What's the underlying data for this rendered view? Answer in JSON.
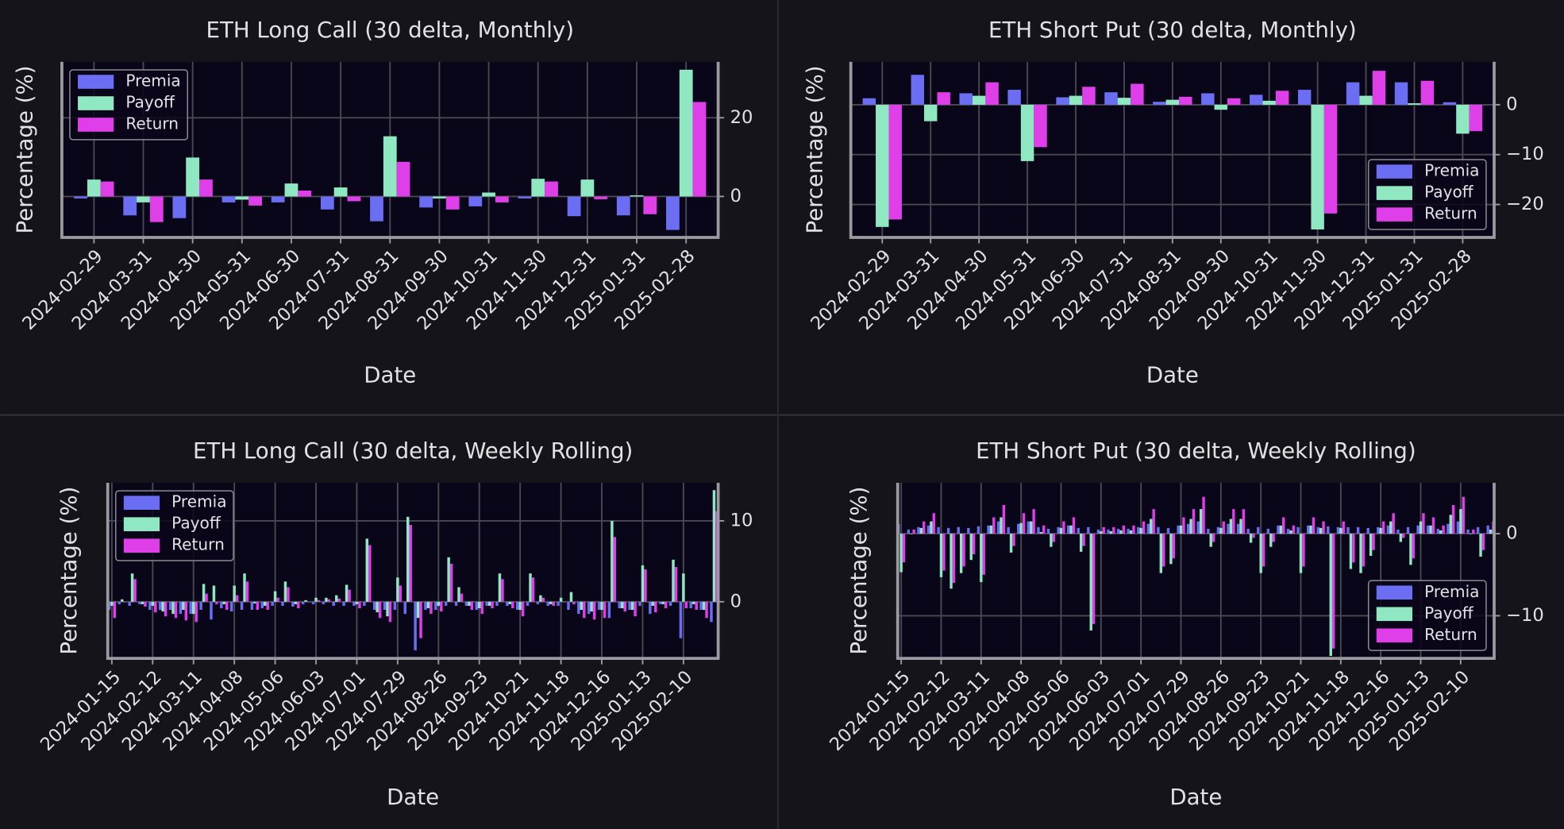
{
  "chart_data": [
    {
      "type": "bar",
      "title": "ETH Long Call (30 delta, Monthly)",
      "x_label": "Date",
      "y_label": "Percentage (%)",
      "categories": [
        "2024-02-29",
        "2024-03-31",
        "2024-04-30",
        "2024-05-31",
        "2024-06-30",
        "2024-07-31",
        "2024-08-31",
        "2024-09-30",
        "2024-10-31",
        "2024-11-30",
        "2024-12-31",
        "2025-01-31",
        "2025-02-28"
      ],
      "series": [
        {
          "name": "Premia",
          "color": "#6b6ef2",
          "values": [
            -0.5,
            -4.8,
            -5.5,
            -1.5,
            -1.5,
            -3.3,
            -6.3,
            -2.8,
            -2.5,
            -0.5,
            -5,
            -4.8,
            -8.5
          ]
        },
        {
          "name": "Payoff",
          "color": "#8fe8c2",
          "values": [
            4.3,
            -1.5,
            9.9,
            -0.8,
            3.3,
            2.3,
            15.3,
            -0.5,
            1,
            4.5,
            4.3,
            0.3,
            32.2
          ]
        },
        {
          "name": "Return",
          "color": "#df3fe8",
          "values": [
            3.8,
            -6.5,
            4.3,
            -2.3,
            1.5,
            -1.2,
            8.8,
            -3.3,
            -1.5,
            3.8,
            -0.7,
            -4.5,
            24
          ]
        }
      ],
      "ylim": [
        -10.4,
        34.2
      ],
      "yticks": [
        0,
        20
      ],
      "grid": true,
      "legend": "upper left"
    },
    {
      "type": "bar",
      "title": "ETH Short Put (30 delta, Monthly)",
      "x_label": "Date",
      "y_label": "Percentage (%)",
      "categories": [
        "2024-02-29",
        "2024-03-31",
        "2024-04-30",
        "2024-05-31",
        "2024-06-30",
        "2024-07-31",
        "2024-08-31",
        "2024-09-30",
        "2024-10-31",
        "2024-11-30",
        "2024-12-31",
        "2025-01-31",
        "2025-02-28"
      ],
      "series": [
        {
          "name": "Premia",
          "color": "#6b6ef2",
          "values": [
            1.3,
            6,
            2.3,
            3,
            1.5,
            2.5,
            0.6,
            2.3,
            2,
            3,
            4.5,
            4.5,
            0.5
          ]
        },
        {
          "name": "Payoff",
          "color": "#8fe8c2",
          "values": [
            -24.5,
            -3.3,
            1.8,
            -11.3,
            1.8,
            1.4,
            1,
            -1,
            0.8,
            -25,
            1.8,
            0.3,
            -5.8
          ]
        },
        {
          "name": "Return",
          "color": "#df3fe8",
          "values": [
            -23,
            2.5,
            4.5,
            -8.5,
            3.6,
            4.2,
            1.6,
            1.3,
            2.8,
            -21.8,
            6.8,
            4.8,
            -5.3
          ]
        }
      ],
      "ylim": [
        -26.6,
        8.6
      ],
      "yticks": [
        {
          "value": -20,
          "label": "−20"
        },
        {
          "value": -10,
          "label": "−10"
        },
        0
      ],
      "grid": true,
      "legend": "lower right"
    },
    {
      "type": "bar",
      "title": "ETH Long Call (30 delta, Weekly Rolling)",
      "x_label": "Date",
      "y_label": "Percentage (%)",
      "categories": [
        "2024-01-15",
        null,
        null,
        null,
        "2024-02-12",
        null,
        null,
        null,
        "2024-03-11",
        null,
        null,
        null,
        "2024-04-08",
        null,
        null,
        null,
        "2024-05-06",
        null,
        null,
        null,
        "2024-06-03",
        null,
        null,
        null,
        "2024-07-01",
        null,
        null,
        null,
        "2024-07-29",
        null,
        null,
        null,
        "2024-08-26",
        null,
        null,
        null,
        "2024-09-23",
        null,
        null,
        null,
        "2024-10-21",
        null,
        null,
        null,
        "2024-11-18",
        null,
        null,
        null,
        "2024-12-16",
        null,
        null,
        null,
        "2025-01-13",
        null,
        null,
        null,
        "2025-02-10",
        null,
        null,
        null
      ],
      "series": [
        {
          "name": "Premia",
          "color": "#6b6ef2",
          "values": [
            -1,
            -0.3,
            -0.5,
            -0.3,
            -1,
            -1,
            -1,
            -1.5,
            -1.5,
            -1,
            -2.2,
            -0.8,
            -1.2,
            -1,
            -1,
            -0.8,
            -0.5,
            -0.5,
            -0.6,
            -0.3,
            -0.3,
            -0.3,
            -0.5,
            -0.5,
            -0.5,
            -0.5,
            -1,
            -1,
            -1,
            -1.5,
            -6,
            -1,
            -1,
            -0.5,
            -0.5,
            -0.5,
            -1,
            -0.5,
            -0.5,
            -0.5,
            -1,
            -0.5,
            -0.3,
            -0.5,
            -0.5,
            -1,
            -1.5,
            -1.5,
            -1,
            -2,
            -0.8,
            -1,
            -0.5,
            -1.5,
            -0.3,
            -0.5,
            -4.5,
            -0.8,
            -1,
            -2.5
          ]
        },
        {
          "name": "Payoff",
          "color": "#8fe8c2",
          "values": [
            -0.5,
            0.3,
            3.5,
            -0.3,
            -0.5,
            -1.2,
            -1.5,
            -1,
            -1.5,
            2.2,
            2,
            -0.3,
            2,
            3.5,
            -0.2,
            -0.5,
            1.3,
            2.5,
            -0.3,
            0.2,
            0.5,
            0.5,
            0.8,
            2.1,
            -0.3,
            7.8,
            -1.3,
            -1.8,
            3,
            10.5,
            -2,
            -0.8,
            -0.5,
            5.5,
            1.8,
            -0.5,
            -0.8,
            -0.5,
            3.5,
            -0.3,
            -1,
            3.5,
            0.8,
            -0.3,
            0.5,
            1.2,
            -1,
            -1.2,
            -1,
            10,
            -0.8,
            -1,
            4.5,
            -0.5,
            -0.3,
            5.2,
            3.5,
            -0.3,
            -1,
            13.8
          ]
        },
        {
          "name": "Return",
          "color": "#df3fe8",
          "values": [
            -2,
            0,
            2.8,
            -0.6,
            -1.3,
            -1.8,
            -2,
            -2.3,
            -2.5,
            1,
            -0.3,
            -1,
            0.8,
            2.5,
            -1,
            -1,
            0.5,
            1.8,
            -0.8,
            0,
            0.2,
            0.3,
            0.4,
            1.5,
            -0.8,
            7,
            -2,
            -2.5,
            2,
            9.5,
            -4.5,
            -1.5,
            -1.2,
            4.7,
            1,
            -1,
            -1.5,
            -0.8,
            2.8,
            -0.8,
            -1.8,
            3,
            0.5,
            -0.5,
            0,
            -0.3,
            -2,
            -2.2,
            -2,
            8,
            -1.2,
            -1.8,
            4,
            -1.3,
            -0.8,
            4.3,
            -0.8,
            -1,
            -2,
            11.2
          ]
        }
      ],
      "ylim": [
        -7,
        14.7
      ],
      "yticks": [
        0,
        10
      ],
      "grid": true,
      "legend": "upper left"
    },
    {
      "type": "bar",
      "title": "ETH Short Put (30 delta, Weekly Rolling)",
      "x_label": "Date",
      "y_label": "Percentage (%)",
      "categories": [
        "2024-01-15",
        null,
        null,
        null,
        "2024-02-12",
        null,
        null,
        null,
        "2024-03-11",
        null,
        null,
        null,
        "2024-04-08",
        null,
        null,
        null,
        "2024-05-06",
        null,
        null,
        null,
        "2024-06-03",
        null,
        null,
        null,
        "2024-07-01",
        null,
        null,
        null,
        "2024-07-29",
        null,
        null,
        null,
        "2024-08-26",
        null,
        null,
        null,
        "2024-09-23",
        null,
        null,
        null,
        "2024-10-21",
        null,
        null,
        null,
        "2024-11-18",
        null,
        null,
        null,
        "2024-12-16",
        null,
        null,
        null,
        "2025-01-13",
        null,
        null,
        null,
        "2025-02-10",
        null,
        null,
        null
      ],
      "series": [
        {
          "name": "Premia",
          "color": "#6b6ef2",
          "values": [
            1.2,
            0.5,
            0.8,
            1,
            0.8,
            0.7,
            0.8,
            0.7,
            0.9,
            1,
            1.5,
            0.8,
            1.2,
            1.5,
            0.8,
            0.6,
            0.8,
            1,
            0.7,
            0.8,
            0.5,
            0.5,
            0.6,
            0.6,
            0.8,
            1.2,
            0.8,
            0.7,
            1,
            1.2,
            1.5,
            0.6,
            0.8,
            1.2,
            1.2,
            0.6,
            0.8,
            0.6,
            1,
            0.6,
            0.8,
            1,
            0.8,
            0.9,
            0.8,
            0.8,
            0.8,
            0.7,
            0.8,
            1,
            0.5,
            0.8,
            1,
            1,
            0.6,
            1.2,
            1.5,
            0.5,
            0.8,
            1
          ]
        },
        {
          "name": "Payoff",
          "color": "#8fe8c2",
          "values": [
            -4.7,
            0,
            0.7,
            1.5,
            -5.3,
            -6.7,
            -4.8,
            -3.2,
            -5.9,
            1,
            2,
            -2.3,
            1.3,
            1.5,
            0.2,
            -1.6,
            0.7,
            1,
            -2.2,
            -11.8,
            0.3,
            0.3,
            0.4,
            0.4,
            0.7,
            1.8,
            -4.8,
            -3.7,
            1,
            1.8,
            3,
            -1.6,
            0.7,
            1.8,
            1.8,
            -1.1,
            -4.8,
            -1.6,
            1,
            0.4,
            -4.8,
            1,
            0.7,
            -14.9,
            0.7,
            -4.3,
            -4.8,
            -2.7,
            0.7,
            1.5,
            -1,
            -3.8,
            1.5,
            1,
            0.4,
            2.3,
            3,
            0,
            -2.8,
            0.5
          ]
        },
        {
          "name": "Return",
          "color": "#df3fe8",
          "values": [
            -3.5,
            0.5,
            1.5,
            2.5,
            -4.5,
            -6,
            -4,
            -2.5,
            -5,
            2,
            3.5,
            -1.5,
            2.5,
            3,
            1,
            -1,
            1.5,
            2,
            -1.5,
            -11,
            0.8,
            0.8,
            1,
            1,
            1.5,
            3,
            -4,
            -3,
            2,
            3,
            4.5,
            -1,
            1.5,
            3,
            3,
            -0.5,
            -4,
            -1,
            2,
            1,
            -4,
            2,
            1.5,
            -14,
            1.5,
            -3.5,
            -4,
            -2,
            1.5,
            2.5,
            -0.5,
            -3,
            2.5,
            2,
            1,
            3.5,
            4.5,
            0.5,
            -2,
            1.5
          ]
        }
      ],
      "ylim": [
        -15.2,
        6.2
      ],
      "yticks": [
        {
          "value": -10,
          "label": "−10"
        },
        0
      ],
      "grid": true,
      "legend": "lower right"
    }
  ]
}
